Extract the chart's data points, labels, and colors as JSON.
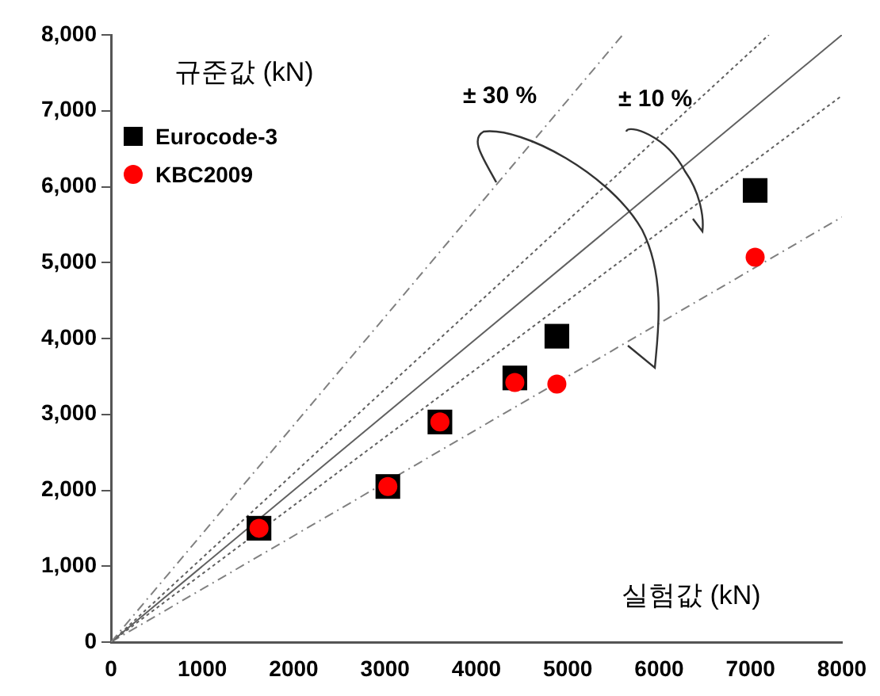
{
  "chart_data": {
    "type": "scatter",
    "xlabel": "실험값 (kN)",
    "ylabel": "규준값 (kN)",
    "xlim": [
      0,
      8000
    ],
    "xticks": [
      0,
      1000,
      2000,
      3000,
      4000,
      5000,
      6000,
      7000,
      8000
    ],
    "ylim": [
      0,
      8000
    ],
    "yticks": [
      {
        "value": 0,
        "label": "0"
      },
      {
        "value": 1000,
        "label": "1,000"
      },
      {
        "value": 2000,
        "label": "2,000"
      },
      {
        "value": 3000,
        "label": "3,000"
      },
      {
        "value": 4000,
        "label": "4,000"
      },
      {
        "value": 5000,
        "label": "5,000"
      },
      {
        "value": 6000,
        "label": "6,000"
      },
      {
        "value": 7000,
        "label": "7,000"
      },
      {
        "value": 8000,
        "label": "8,000"
      }
    ],
    "grid": false,
    "legend": "top left",
    "annotations": [
      "± 30 %",
      "± 10 %"
    ],
    "series": [
      {
        "type": "line",
        "color": "#808080",
        "line_style": "dashed",
        "marker": "none",
        "x": [
          0,
          5600
        ],
        "values": [
          0,
          8000
        ]
      },
      {
        "type": "line",
        "color": "#606060",
        "line_style": "dotted",
        "marker": "none",
        "x": [
          0,
          7200
        ],
        "values": [
          0,
          8000
        ]
      },
      {
        "type": "line",
        "color": "#606060",
        "line_style": "solid",
        "marker": "none",
        "x": [
          0,
          8000
        ],
        "values": [
          0,
          8000
        ]
      },
      {
        "type": "line",
        "color": "#606060",
        "line_style": "dotted",
        "marker": "none",
        "x": [
          0,
          8000
        ],
        "values": [
          0,
          7200
        ]
      },
      {
        "type": "line",
        "color": "#808080",
        "line_style": "dashed",
        "marker": "none",
        "x": [
          0,
          8000
        ],
        "values": [
          0,
          5600
        ]
      },
      {
        "name": "Eurocode-3",
        "color": "#000000",
        "marker": "square",
        "x": [
          1620,
          3030,
          3600,
          4420,
          4880,
          7050
        ],
        "values": [
          1500,
          2050,
          2900,
          3480,
          4030,
          5950
        ]
      },
      {
        "name": "KBC2009",
        "color": "#ff0000",
        "marker": "circle",
        "x": [
          1620,
          3030,
          3600,
          4420,
          4880,
          7050
        ],
        "values": [
          1500,
          2050,
          2900,
          3420,
          3400,
          5070
        ]
      }
    ]
  }
}
